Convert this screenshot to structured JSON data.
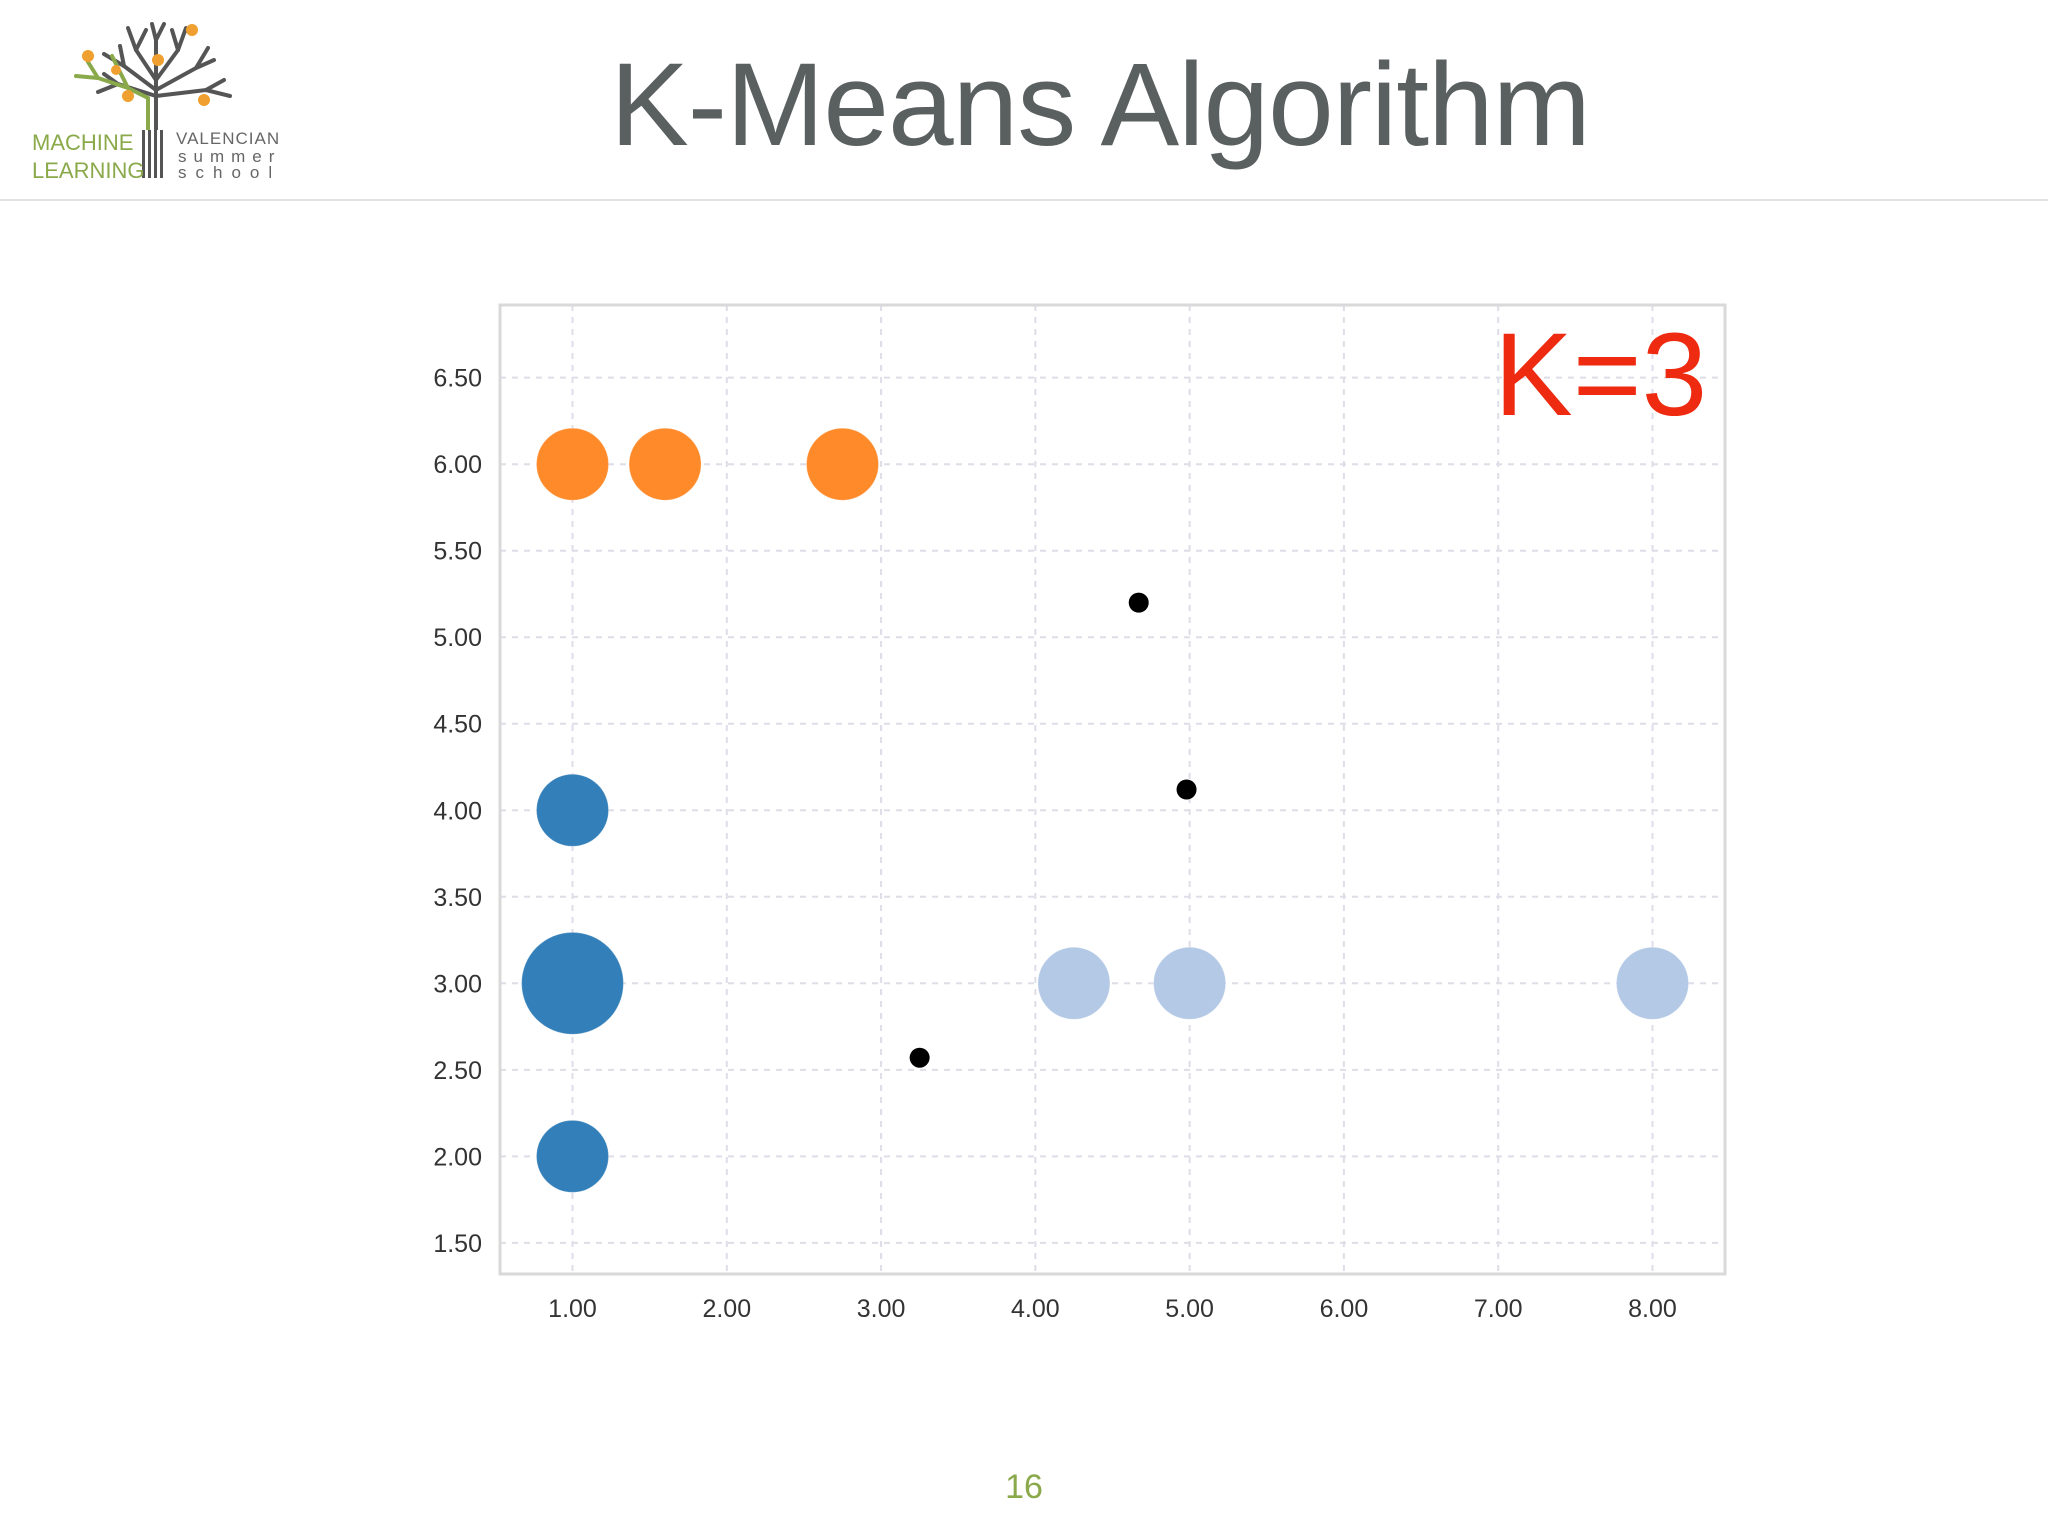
{
  "header": {
    "title": "K-Means Algorithm",
    "logo": {
      "line1": "MACHINE",
      "line2": "LEARNING",
      "line3": "VALENCIAN",
      "line4": "summer",
      "line5": "school",
      "icon": "tree-icon",
      "colors": {
        "green": "#8aa94a",
        "orange": "#f0a030",
        "gray": "#555555"
      }
    }
  },
  "annotation": {
    "k_label": "K=3",
    "color": "#ee2a10"
  },
  "footer": {
    "page_number": "16"
  },
  "chart_data": {
    "type": "scatter",
    "title": "",
    "xlabel": "",
    "ylabel": "",
    "xlim": [
      0.53,
      8.47
    ],
    "ylim": [
      1.32,
      6.92
    ],
    "x_ticks": [
      "1.00",
      "2.00",
      "3.00",
      "4.00",
      "5.00",
      "6.00",
      "7.00",
      "8.00"
    ],
    "y_ticks": [
      "1.50",
      "2.00",
      "2.50",
      "3.00",
      "3.50",
      "4.00",
      "4.50",
      "5.00",
      "5.50",
      "6.00",
      "6.50"
    ],
    "grid": true,
    "legend": "none",
    "series": [
      {
        "color": "#ff8a2a",
        "points": [
          {
            "x": 1.0,
            "y": 6.0,
            "size": 1
          },
          {
            "x": 1.6,
            "y": 6.0,
            "size": 1
          },
          {
            "x": 2.75,
            "y": 6.0,
            "size": 1
          }
        ]
      },
      {
        "color": "#337fb9",
        "points": [
          {
            "x": 1.0,
            "y": 4.0,
            "size": 1
          },
          {
            "x": 1.0,
            "y": 3.0,
            "size": 2
          },
          {
            "x": 1.0,
            "y": 2.0,
            "size": 1
          }
        ]
      },
      {
        "color": "#b3c9e6",
        "points": [
          {
            "x": 4.25,
            "y": 3.0,
            "size": 1
          },
          {
            "x": 5.0,
            "y": 3.0,
            "size": 1
          },
          {
            "x": 8.0,
            "y": 3.0,
            "size": 1
          }
        ]
      },
      {
        "color": "#000000",
        "points": [
          {
            "x": 4.67,
            "y": 5.2,
            "size": 0.2
          },
          {
            "x": 4.98,
            "y": 4.12,
            "size": 0.2
          },
          {
            "x": 3.25,
            "y": 2.57,
            "size": 0.2
          }
        ]
      }
    ]
  }
}
